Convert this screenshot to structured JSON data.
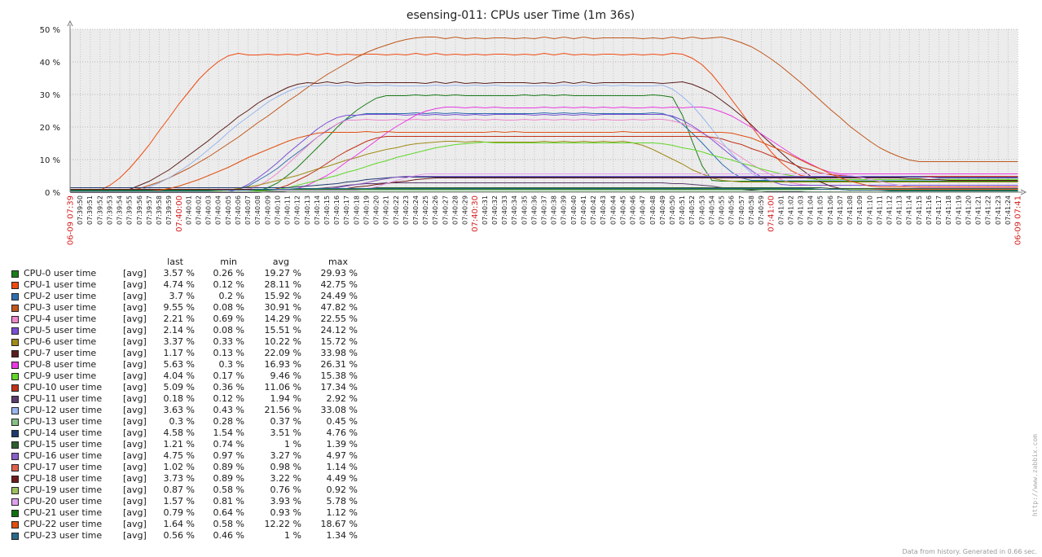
{
  "chart_data": {
    "type": "line",
    "title": "esensing-011: CPUs user Time (1m 36s)",
    "yticks": [
      "0 %",
      "10 %",
      "20 %",
      "30 %",
      "40 %",
      "50 %"
    ],
    "ylim": [
      0,
      50
    ],
    "grid": true,
    "time_start": "07:39:49",
    "time_end": "07:41:25",
    "start_label": "06-09 07:39",
    "end_label": "06-09 07:41",
    "marker_labels": [
      "07:40:00",
      "07:40:30",
      "07:41:00"
    ],
    "x_labels": [
      "07:39:50",
      "07:39:51",
      "07:39:52",
      "07:39:53",
      "07:39:54",
      "07:39:55",
      "07:39:56",
      "07:39:57",
      "07:39:58",
      "07:39:59",
      "07:40:00",
      "07:40:01",
      "07:40:02",
      "07:40:03",
      "07:40:04",
      "07:40:05",
      "07:40:06",
      "07:40:07",
      "07:40:08",
      "07:40:09",
      "07:40:10",
      "07:40:11",
      "07:40:12",
      "07:40:13",
      "07:40:14",
      "07:40:15",
      "07:40:16",
      "07:40:17",
      "07:40:18",
      "07:40:19",
      "07:40:20",
      "07:40:21",
      "07:40:22",
      "07:40:23",
      "07:40:24",
      "07:40:25",
      "07:40:26",
      "07:40:27",
      "07:40:28",
      "07:40:29",
      "07:40:30",
      "07:40:31",
      "07:40:32",
      "07:40:33",
      "07:40:34",
      "07:40:35",
      "07:40:36",
      "07:40:37",
      "07:40:38",
      "07:40:39",
      "07:40:40",
      "07:40:41",
      "07:40:42",
      "07:40:43",
      "07:40:44",
      "07:40:45",
      "07:40:46",
      "07:40:47",
      "07:40:48",
      "07:40:49",
      "07:40:50",
      "07:40:51",
      "07:40:52",
      "07:40:53",
      "07:40:54",
      "07:40:55",
      "07:40:56",
      "07:40:57",
      "07:40:58",
      "07:40:59",
      "07:41:00",
      "07:41:01",
      "07:41:02",
      "07:41:03",
      "07:41:04",
      "07:41:05",
      "07:41:06",
      "07:41:07",
      "07:41:08",
      "07:41:09",
      "07:41:10",
      "07:41:11",
      "07:41:12",
      "07:41:13",
      "07:41:14",
      "07:41:15",
      "07:41:16",
      "07:41:17",
      "07:41:18",
      "07:41:19",
      "07:41:20",
      "07:41:21",
      "07:41:22",
      "07:41:23",
      "07:41:24"
    ],
    "series": [
      {
        "name": "CPU-0 user time",
        "color": "#1a7c1a",
        "fn": "[avg]",
        "last": "3.57 %",
        "min": "0.26 %",
        "avg": "19.27 %",
        "max": "29.93 %",
        "shape": [
          0.26,
          30,
          3.57,
          19,
          34,
          63,
          68
        ]
      },
      {
        "name": "CPU-1 user time",
        "color": "#f04a10",
        "fn": "[avg]",
        "last": "4.74 %",
        "min": "0.12 %",
        "avg": "28.11 %",
        "max": "42.75 %",
        "shape": [
          0.12,
          42.75,
          4.74,
          2,
          18,
          64,
          78
        ]
      },
      {
        "name": "CPU-2 user time",
        "color": "#2f6fb0",
        "fn": "[avg]",
        "last": "3.7 %",
        "min": "0.2 %",
        "avg": "15.92 %",
        "max": "24.49 %",
        "shape": [
          0.2,
          24.49,
          3.7,
          16,
          32,
          62,
          72
        ]
      },
      {
        "name": "CPU-3 user time",
        "color": "#c0561a",
        "fn": "[avg]",
        "last": "9.55 %",
        "min": "0.08 %",
        "avg": "30.91 %",
        "max": "47.82 %",
        "shape": [
          0.08,
          47.82,
          9.55,
          4,
          38,
          68,
          90
        ]
      },
      {
        "name": "CPU-4 user time",
        "color": "#ee88cc",
        "fn": "[avg]",
        "last": "2.21 %",
        "min": "0.69 %",
        "avg": "14.29 %",
        "max": "22.55 %",
        "shape": [
          0.69,
          22.55,
          2.21,
          18,
          30,
          62,
          78
        ]
      },
      {
        "name": "CPU-5 user time",
        "color": "#7b4fd6",
        "fn": "[avg]",
        "last": "2.14 %",
        "min": "0.08 %",
        "avg": "15.51 %",
        "max": "24.12 %",
        "shape": [
          0.08,
          24.12,
          2.14,
          16,
          30,
          62,
          76
        ]
      },
      {
        "name": "CPU-6 user time",
        "color": "#a08a18",
        "fn": "[avg]",
        "last": "3.37 %",
        "min": "0.33 %",
        "avg": "10.22 %",
        "max": "15.72 %",
        "shape": [
          0.33,
          15.72,
          3.37,
          14,
          40,
          58,
          70
        ]
      },
      {
        "name": "CPU-7 user time",
        "color": "#5a1e1e",
        "fn": "[avg]",
        "last": "1.17 %",
        "min": "0.13 %",
        "avg": "22.09 %",
        "max": "33.98 %",
        "shape": [
          0.13,
          33.98,
          1.17,
          4,
          26,
          64,
          82
        ]
      },
      {
        "name": "CPU-8 user time",
        "color": "#e83ae0",
        "fn": "[avg]",
        "last": "5.63 %",
        "min": "0.3 %",
        "avg": "16.93 %",
        "max": "26.31 %",
        "shape": [
          0.3,
          26.31,
          5.63,
          22,
          40,
          66,
          82
        ]
      },
      {
        "name": "CPU-9 user time",
        "color": "#62d62a",
        "fn": "[avg]",
        "last": "4.04 %",
        "min": "0.17 %",
        "avg": "9.46 %",
        "max": "15.38 %",
        "shape": [
          0.17,
          15.38,
          4.04,
          18,
          44,
          60,
          80
        ]
      },
      {
        "name": "CPU-10 user time",
        "color": "#c0331a",
        "fn": "[avg]",
        "last": "5.09 %",
        "min": "0.36 %",
        "avg": "11.06 %",
        "max": "17.34 %",
        "shape": [
          0.36,
          17.34,
          5.09,
          20,
          34,
          66,
          82
        ]
      },
      {
        "name": "CPU-11 user time",
        "color": "#5e3a6e",
        "fn": "[avg]",
        "last": "0.18 %",
        "min": "0.12 %",
        "avg": "1.94 %",
        "max": "2.92 %",
        "shape": [
          0.12,
          2.92,
          0.18,
          20,
          34,
          62,
          76
        ]
      },
      {
        "name": "CPU-12 user time",
        "color": "#9ab6ee",
        "fn": "[avg]",
        "last": "3.63 %",
        "min": "0.43 %",
        "avg": "21.56 %",
        "max": "33.08 %",
        "shape": [
          0.43,
          33.08,
          3.63,
          6,
          26,
          62,
          74
        ]
      },
      {
        "name": "CPU-13 user time",
        "color": "#86c086",
        "fn": "[avg]",
        "last": "0.3 %",
        "min": "0.28 %",
        "avg": "0.37 %",
        "max": "0.45 %",
        "shape": [
          0.28,
          0.45,
          0.3,
          10,
          30,
          70,
          86
        ]
      },
      {
        "name": "CPU-14 user time",
        "color": "#1e3a6e",
        "fn": "[avg]",
        "last": "4.58 %",
        "min": "1.54 %",
        "avg": "3.51 %",
        "max": "4.76 %",
        "shape": [
          1.54,
          4.76,
          4.58,
          22,
          36,
          86,
          94
        ]
      },
      {
        "name": "CPU-15 user time",
        "color": "#2e5e2e",
        "fn": "[avg]",
        "last": "1.21 %",
        "min": "0.74 %",
        "avg": "1 %",
        "max": "1.39 %",
        "shape": [
          0.74,
          1.39,
          1.21,
          14,
          34,
          78,
          90
        ]
      },
      {
        "name": "CPU-16 user time",
        "color": "#8a5ec8",
        "fn": "[avg]",
        "last": "4.75 %",
        "min": "0.97 %",
        "avg": "3.27 %",
        "max": "4.97 %",
        "shape": [
          0.97,
          4.97,
          4.75,
          26,
          36,
          86,
          94
        ]
      },
      {
        "name": "CPU-17 user time",
        "color": "#e0604a",
        "fn": "[avg]",
        "last": "1.02 %",
        "min": "0.89 %",
        "avg": "0.98 %",
        "max": "1.14 %",
        "shape": [
          0.89,
          1.14,
          1.02,
          14,
          30,
          76,
          88
        ]
      },
      {
        "name": "CPU-18 user time",
        "color": "#701a1a",
        "fn": "[avg]",
        "last": "3.73 %",
        "min": "0.89 %",
        "avg": "3.22 %",
        "max": "4.49 %",
        "shape": [
          0.89,
          4.49,
          3.73,
          26,
          40,
          86,
          94
        ]
      },
      {
        "name": "CPU-19 user time",
        "color": "#a0c060",
        "fn": "[avg]",
        "last": "0.87 %",
        "min": "0.58 %",
        "avg": "0.76 %",
        "max": "0.92 %",
        "shape": [
          0.58,
          0.92,
          0.87,
          12,
          30,
          74,
          88
        ]
      },
      {
        "name": "CPU-20 user time",
        "color": "#e0a0ee",
        "fn": "[avg]",
        "last": "1.57 %",
        "min": "0.81 %",
        "avg": "3.93 %",
        "max": "5.78 %",
        "shape": [
          0.81,
          5.78,
          1.57,
          30,
          38,
          80,
          90
        ]
      },
      {
        "name": "CPU-21 user time",
        "color": "#107010",
        "fn": "[avg]",
        "last": "0.79 %",
        "min": "0.64 %",
        "avg": "0.93 %",
        "max": "1.12 %",
        "shape": [
          0.64,
          1.12,
          0.79,
          12,
          30,
          72,
          86
        ]
      },
      {
        "name": "CPU-22 user time",
        "color": "#e05010",
        "fn": "[avg]",
        "last": "1.64 %",
        "min": "0.58 %",
        "avg": "12.22 %",
        "max": "18.67 %",
        "shape": [
          0.58,
          18.67,
          1.64,
          8,
          28,
          68,
          86
        ]
      },
      {
        "name": "CPU-23 user time",
        "color": "#2a6a8a",
        "fn": "[avg]",
        "last": "0.56 %",
        "min": "0.46 %",
        "avg": "1 %",
        "max": "1.34 %",
        "shape": [
          0.46,
          1.34,
          0.56,
          10,
          30,
          74,
          88
        ]
      }
    ]
  },
  "legend_headers": {
    "last": "last",
    "min": "min",
    "avg": "avg",
    "max": "max"
  },
  "watermark": "http://www.zabbix.com",
  "footer": "Data from history. Generated in 0.66 sec."
}
